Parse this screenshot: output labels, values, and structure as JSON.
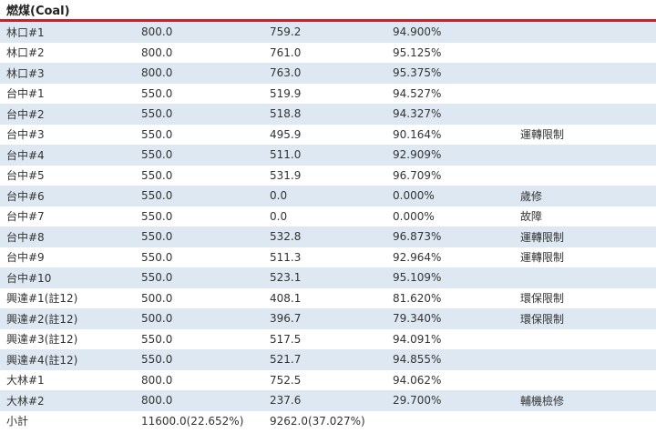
{
  "section": {
    "title": "燃煤(Coal)"
  },
  "rows": [
    {
      "unit": "林口#1",
      "capacity": "800.0",
      "output": "759.2",
      "ratio": "94.900%",
      "note": ""
    },
    {
      "unit": "林口#2",
      "capacity": "800.0",
      "output": "761.0",
      "ratio": "95.125%",
      "note": ""
    },
    {
      "unit": "林口#3",
      "capacity": "800.0",
      "output": "763.0",
      "ratio": "95.375%",
      "note": ""
    },
    {
      "unit": "台中#1",
      "capacity": "550.0",
      "output": "519.9",
      "ratio": "94.527%",
      "note": ""
    },
    {
      "unit": "台中#2",
      "capacity": "550.0",
      "output": "518.8",
      "ratio": "94.327%",
      "note": ""
    },
    {
      "unit": "台中#3",
      "capacity": "550.0",
      "output": "495.9",
      "ratio": "90.164%",
      "note": "運轉限制"
    },
    {
      "unit": "台中#4",
      "capacity": "550.0",
      "output": "511.0",
      "ratio": "92.909%",
      "note": ""
    },
    {
      "unit": "台中#5",
      "capacity": "550.0",
      "output": "531.9",
      "ratio": "96.709%",
      "note": ""
    },
    {
      "unit": "台中#6",
      "capacity": "550.0",
      "output": "0.0",
      "ratio": "0.000%",
      "note": "歲修"
    },
    {
      "unit": "台中#7",
      "capacity": "550.0",
      "output": "0.0",
      "ratio": "0.000%",
      "note": "故障"
    },
    {
      "unit": "台中#8",
      "capacity": "550.0",
      "output": "532.8",
      "ratio": "96.873%",
      "note": "運轉限制"
    },
    {
      "unit": "台中#9",
      "capacity": "550.0",
      "output": "511.3",
      "ratio": "92.964%",
      "note": "運轉限制"
    },
    {
      "unit": "台中#10",
      "capacity": "550.0",
      "output": "523.1",
      "ratio": "95.109%",
      "note": ""
    },
    {
      "unit": "興達#1(註12)",
      "capacity": "500.0",
      "output": "408.1",
      "ratio": "81.620%",
      "note": "環保限制"
    },
    {
      "unit": "興達#2(註12)",
      "capacity": "500.0",
      "output": "396.7",
      "ratio": "79.340%",
      "note": "環保限制"
    },
    {
      "unit": "興達#3(註12)",
      "capacity": "550.0",
      "output": "517.5",
      "ratio": "94.091%",
      "note": ""
    },
    {
      "unit": "興達#4(註12)",
      "capacity": "550.0",
      "output": "521.7",
      "ratio": "94.855%",
      "note": ""
    },
    {
      "unit": "大林#1",
      "capacity": "800.0",
      "output": "752.5",
      "ratio": "94.062%",
      "note": ""
    },
    {
      "unit": "大林#2",
      "capacity": "800.0",
      "output": "237.6",
      "ratio": "29.700%",
      "note": "輔機檢修"
    }
  ],
  "subtotal": {
    "label": "小計",
    "capacity": "11600.0(22.652%)",
    "output": "9262.0(37.027%)"
  }
}
